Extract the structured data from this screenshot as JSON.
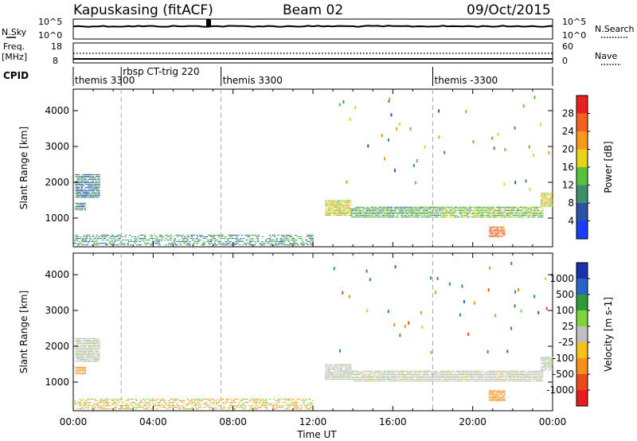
{
  "header": {
    "station": "Kapuskasing (fitACF)",
    "beam": "Beam 02",
    "date": "09/Oct/2015"
  },
  "top_panels": {
    "nsky": {
      "label": "N.Sky",
      "ticks": [
        "10^5",
        "10^0"
      ]
    },
    "nsearch": {
      "label": "N.Search",
      "ticks": [
        "10^5",
        "10^0"
      ]
    },
    "freq": {
      "label": "Freq.",
      "unit": "[MHz]",
      "ticks": [
        "18",
        "8"
      ]
    },
    "nave": {
      "label": "Nave",
      "ticks": [
        "60",
        "0"
      ]
    },
    "cpid": {
      "label": "CPID",
      "segments": [
        {
          "label": "themis 3300",
          "start_h": 0.0
        },
        {
          "label": "rbsp CT-trig 220",
          "start_h": 2.4
        },
        {
          "label": "themis 3300",
          "start_h": 7.4
        },
        {
          "label": "themis -3300",
          "start_h": 18.0
        }
      ]
    }
  },
  "x_axis": {
    "label": "Time UT",
    "ticks": [
      "00:00",
      "04:00",
      "08:00",
      "12:00",
      "16:00",
      "20:00",
      "00:00"
    ]
  },
  "panels": [
    {
      "id": "power",
      "ylabel": "Slant Range [km]",
      "cbar_label": "Power [dB]",
      "cbar_ticks": [
        "4",
        "8",
        "12",
        "16",
        "20",
        "24",
        "28"
      ],
      "cbar_colors": [
        "#1a3cff",
        "#2a52a8",
        "#3d8f6e",
        "#56c43a",
        "#e8d21a",
        "#f59a1a",
        "#f5621e",
        "#e82020"
      ]
    },
    {
      "id": "velocity",
      "ylabel": "Slant Range [km]",
      "cbar_label": "Velocity [m s-1]",
      "cbar_ticks": [
        "1000",
        "500",
        "100",
        "25",
        "-25",
        "-100",
        "-500",
        "-1000"
      ],
      "cbar_colors": [
        "#1a30b0",
        "#2a62c8",
        "#2e9a3a",
        "#7ad43a",
        "#c0c0c0",
        "#f5c21a",
        "#f5901a",
        "#e84a1a",
        "#e81a1a"
      ]
    }
  ],
  "chart_data": {
    "type": "heatmap",
    "title": "Kapuskasing (fitACF) Beam 02 09/Oct/2015",
    "xlabel": "Time UT",
    "ylabel": "Slant Range [km]",
    "xlim_hours": [
      0,
      24
    ],
    "ylim_km": [
      200,
      4600
    ],
    "y_ticks_km": [
      1000,
      2000,
      3000,
      4000
    ],
    "power_colorbar": {
      "label": "Power [dB]",
      "range": [
        0,
        32
      ],
      "ticks": [
        4,
        8,
        12,
        16,
        20,
        24,
        28
      ]
    },
    "velocity_colorbar": {
      "label": "Velocity [m s-1]",
      "ticks": [
        1000,
        500,
        100,
        25,
        -25,
        -100,
        -500,
        -1000
      ]
    },
    "dashed_markers_hours": [
      2.4,
      7.4,
      18.0
    ],
    "echo_regions": [
      {
        "t0": 0.1,
        "t1": 1.3,
        "r0": 1550,
        "r1": 2200,
        "power": 8,
        "velocity": 10
      },
      {
        "t0": 0.1,
        "t1": 0.6,
        "r0": 1200,
        "r1": 1400,
        "power": 10,
        "velocity": -200
      },
      {
        "t0": 12.6,
        "t1": 13.9,
        "r0": 1050,
        "r1": 1500,
        "power": 18,
        "velocity": 5
      },
      {
        "t0": 13.9,
        "t1": 18.5,
        "r0": 1000,
        "r1": 1300,
        "power": 12,
        "velocity": 0
      },
      {
        "t0": 18.5,
        "t1": 23.5,
        "r0": 1000,
        "r1": 1300,
        "power": 14,
        "velocity": 0
      },
      {
        "t0": 20.8,
        "t1": 21.6,
        "r0": 450,
        "r1": 750,
        "power": 26,
        "velocity": -350
      },
      {
        "t0": 23.4,
        "t1": 24.0,
        "r0": 1300,
        "r1": 1700,
        "power": 18,
        "velocity": 10
      },
      {
        "t0": 0.0,
        "t1": 12.0,
        "r0": 220,
        "r1": 500,
        "power": 10,
        "velocity": -60
      }
    ]
  }
}
